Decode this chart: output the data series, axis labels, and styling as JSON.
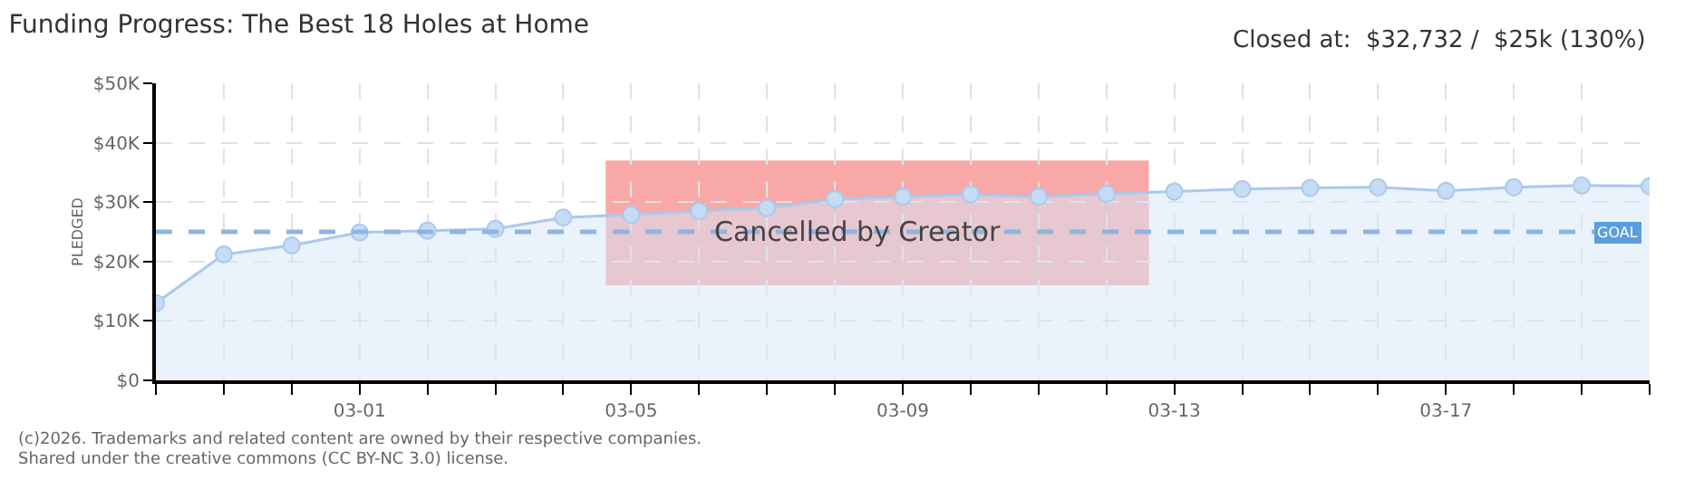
{
  "chart_data": {
    "type": "area",
    "title": "Funding Progress: The Best 18 Holes at Home",
    "ylabel": "PLEDGED",
    "x": [
      "2026-02-26",
      "2026-02-27",
      "2026-02-28",
      "2026-03-01",
      "2026-03-02",
      "2026-03-03",
      "2026-03-04",
      "2026-03-05",
      "2026-03-06",
      "2026-03-07",
      "2026-03-08",
      "2026-03-09",
      "2026-03-10",
      "2026-03-11",
      "2026-03-12",
      "2026-03-13",
      "2026-03-14",
      "2026-03-15",
      "2026-03-16",
      "2026-03-17",
      "2026-03-18",
      "2026-03-19",
      "2026-03-20"
    ],
    "series": [
      {
        "color": "#a9c9ee",
        "values": [
          13.0,
          21.2,
          22.7,
          24.9,
          25.2,
          25.5,
          27.4,
          27.9,
          28.5,
          29.0,
          30.5,
          30.9,
          31.3,
          30.9,
          31.4,
          31.8,
          32.2,
          32.4,
          32.5,
          31.9,
          32.5,
          32.8,
          32.7
        ]
      }
    ],
    "xlim": [
      "2026-02-26",
      "2026-03-20"
    ],
    "xticks": [
      {
        "value": "2026-02-26",
        "label": null
      },
      {
        "value": "2026-02-27",
        "label": null
      },
      {
        "value": "2026-02-28",
        "label": null
      },
      {
        "value": "2026-03-01",
        "label": "03-01"
      },
      {
        "value": "2026-03-02",
        "label": null
      },
      {
        "value": "2026-03-03",
        "label": null
      },
      {
        "value": "2026-03-04",
        "label": null
      },
      {
        "value": "2026-03-05",
        "label": "03-05"
      },
      {
        "value": "2026-03-06",
        "label": null
      },
      {
        "value": "2026-03-07",
        "label": null
      },
      {
        "value": "2026-03-08",
        "label": null
      },
      {
        "value": "2026-03-09",
        "label": "03-09"
      },
      {
        "value": "2026-03-10",
        "label": null
      },
      {
        "value": "2026-03-11",
        "label": null
      },
      {
        "value": "2026-03-12",
        "label": null
      },
      {
        "value": "2026-03-13",
        "label": "03-13"
      },
      {
        "value": "2026-03-14",
        "label": null
      },
      {
        "value": "2026-03-15",
        "label": null
      },
      {
        "value": "2026-03-16",
        "label": null
      },
      {
        "value": "2026-03-17",
        "label": "03-17"
      },
      {
        "value": "2026-03-18",
        "label": null
      },
      {
        "value": "2026-03-19",
        "label": null
      },
      {
        "value": "2026-03-20",
        "label": null
      }
    ],
    "ylim": [
      0,
      50
    ],
    "yticks": [
      {
        "value": 0,
        "label": "$0"
      },
      {
        "value": 10,
        "label": "$10K"
      },
      {
        "value": 20,
        "label": "$20K"
      },
      {
        "value": 30,
        "label": "$30K"
      },
      {
        "value": 40,
        "label": "$40K"
      },
      {
        "value": 50,
        "label": "$50K"
      }
    ],
    "ref_lines": [
      {
        "axis": "y",
        "value": 25,
        "label": "GOAL",
        "color": "#8fb4e0",
        "line_style": "dashed"
      }
    ],
    "bands": [
      {
        "axis": "x",
        "from": "2026-03-04T15:00",
        "to": "2026-03-12T15:00",
        "label": "Cancelled by Creator",
        "color": "#f56e6e"
      }
    ],
    "grid": true,
    "marker": "circle",
    "annotations": [
      "Closed at:  $32,732 /  $25k (130%)",
      "(c)2026. Trademarks and related content are owned by their respective companies.",
      "Shared under the creative commons (CC BY-NC 3.0) license."
    ]
  }
}
